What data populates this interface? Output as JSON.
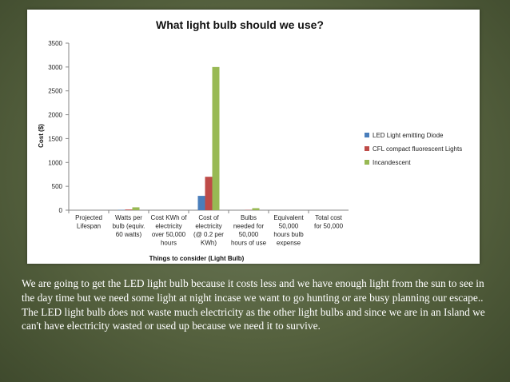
{
  "chart_data": {
    "type": "bar",
    "title": "What light bulb should we use?",
    "xlabel": "Things to consider (Light Bulb)",
    "ylabel": "Cost ($)",
    "ylim": [
      0,
      3500
    ],
    "yticks": [
      "0",
      "500",
      "1000",
      "1500",
      "2000",
      "2500",
      "3000",
      "3500"
    ],
    "grid": false,
    "legend_position": "right",
    "categories": [
      [
        "Projected",
        "Lifespan"
      ],
      [
        "Watts per",
        "bulb (equiv.",
        "60 watts)"
      ],
      [
        "Cost KWh of",
        "electricity",
        "over 50,000",
        "hours"
      ],
      [
        "Cost of",
        "electricity",
        "(@ 0.2 per",
        "KWh)"
      ],
      [
        "Bulbs",
        "needed for",
        "50,000",
        "hours of use"
      ],
      [
        "Equivalent",
        "50,000",
        "hours bulb",
        "expense"
      ],
      [
        "Total cost",
        "for 50,000"
      ]
    ],
    "series": [
      {
        "name": "LED Light emitting Diode",
        "color": "#4a7ebb",
        "values": [
          0,
          6,
          0,
          300,
          0,
          0,
          0
        ]
      },
      {
        "name": "CFL compact fluorescent Lights",
        "color": "#be4b48",
        "values": [
          0,
          14,
          0,
          700,
          5,
          0,
          0
        ]
      },
      {
        "name": "Incandescent",
        "color": "#98b954",
        "values": [
          0,
          60,
          0,
          3000,
          42,
          0,
          0
        ]
      }
    ]
  },
  "caption": "We are going to get the LED light bulb because it costs less and we have enough light from the sun to see in the day time but we need some light at night incase we want to go hunting or are busy planning our escape.. The LED light bulb does not waste much electricity as the other light bulbs and since we are in an Island we can't have electricity wasted or used up because we need it to survive."
}
